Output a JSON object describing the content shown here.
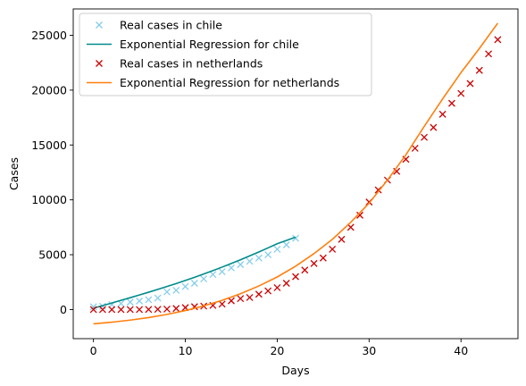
{
  "chart_data": {
    "type": "scatter",
    "title": "",
    "xlabel": "Days",
    "ylabel": "Cases",
    "xlim": [
      -2.2,
      46.2
    ],
    "ylim": [
      -2650,
      27400
    ],
    "xticks": [
      0,
      10,
      20,
      30,
      40
    ],
    "yticks": [
      0,
      5000,
      10000,
      15000,
      20000,
      25000
    ],
    "grid": false,
    "legend_position": "top-left",
    "series": [
      {
        "name": "Real cases in chile",
        "kind": "markers",
        "marker": "x",
        "color": "#87ceeb",
        "x": [
          0,
          1,
          2,
          3,
          4,
          5,
          6,
          7,
          8,
          9,
          10,
          11,
          12,
          13,
          14,
          15,
          16,
          17,
          18,
          19,
          20,
          21,
          22
        ],
        "y": [
          250,
          300,
          450,
          550,
          680,
          780,
          900,
          1050,
          1610,
          1750,
          2100,
          2400,
          2800,
          3200,
          3450,
          3800,
          4100,
          4400,
          4700,
          5000,
          5500,
          5900,
          6500
        ]
      },
      {
        "name": "Exponential Regression for chile",
        "kind": "line",
        "color": "#008b8b",
        "x": [
          0,
          1,
          2,
          3,
          4,
          5,
          6,
          7,
          8,
          9,
          10,
          11,
          12,
          13,
          14,
          15,
          16,
          17,
          18,
          19,
          20,
          21,
          22
        ],
        "y": [
          120,
          360,
          600,
          840,
          1080,
          1330,
          1580,
          1840,
          2100,
          2370,
          2650,
          2940,
          3240,
          3550,
          3870,
          4200,
          4540,
          4890,
          5250,
          5620,
          6000,
          6300,
          6600
        ]
      },
      {
        "name": "Real cases in netherlands",
        "kind": "markers",
        "marker": "x",
        "color": "#cc0000",
        "x": [
          0,
          1,
          2,
          3,
          4,
          5,
          6,
          7,
          8,
          9,
          10,
          11,
          12,
          13,
          14,
          15,
          16,
          17,
          18,
          19,
          20,
          21,
          22,
          23,
          24,
          25,
          26,
          27,
          28,
          29,
          30,
          31,
          32,
          33,
          34,
          35,
          36,
          37,
          38,
          39,
          40,
          41,
          42,
          43,
          44
        ],
        "y": [
          0,
          0,
          0,
          0,
          0,
          0,
          10,
          20,
          40,
          100,
          180,
          260,
          320,
          380,
          500,
          800,
          1000,
          1100,
          1400,
          1700,
          2000,
          2400,
          3000,
          3600,
          4200,
          4700,
          5500,
          6400,
          7500,
          8600,
          9800,
          10900,
          11800,
          12600,
          13700,
          14700,
          15700,
          16600,
          17800,
          18800,
          19700,
          20600,
          21800,
          23300,
          24600
        ]
      },
      {
        "name": "Exponential Regression for netherlands",
        "kind": "line",
        "color": "#ff7f0e",
        "x": [
          0,
          2,
          4,
          6,
          8,
          10,
          12,
          14,
          16,
          18,
          20,
          22,
          24,
          26,
          28,
          30,
          32,
          34,
          36,
          38,
          40,
          42,
          44
        ],
        "y": [
          -1300,
          -1150,
          -960,
          -730,
          -440,
          -90,
          330,
          840,
          1440,
          2150,
          2970,
          3950,
          5100,
          6400,
          7950,
          9700,
          11800,
          14100,
          16700,
          19200,
          21600,
          23800,
          26100
        ]
      }
    ]
  }
}
